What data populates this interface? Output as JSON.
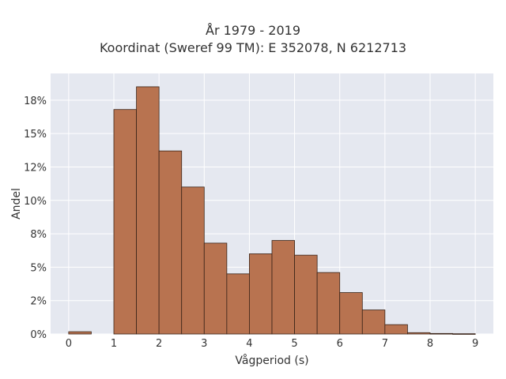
{
  "chart_data": {
    "type": "bar",
    "title_line1": "År 1979 - 2019",
    "title_line2": "Koordinat (Sweref 99 TM): E 352078, N 6212713",
    "xlabel": "Vågperiod (s)",
    "ylabel": "Andel",
    "bin_width": 0.5,
    "bins_start": [
      0,
      0.5,
      1,
      1.5,
      2,
      2.5,
      3,
      3.5,
      4,
      4.5,
      5,
      5.5,
      6,
      6.5,
      7,
      7.5,
      8,
      8.5
    ],
    "values": [
      0.17,
      0,
      16.8,
      18.5,
      13.7,
      11.0,
      6.8,
      4.5,
      6.0,
      7.0,
      5.9,
      4.6,
      3.1,
      1.8,
      0.7,
      0.1,
      0.04,
      0.02
    ],
    "xlim": [
      -0.4,
      9.4
    ],
    "ylim": [
      0,
      19.5
    ],
    "x_ticks": [
      0,
      1,
      2,
      3,
      4,
      5,
      6,
      7,
      8,
      9
    ],
    "y_ticks": [
      0,
      2.5,
      5,
      7.5,
      10,
      12.5,
      15,
      17.5
    ],
    "y_tick_labels": [
      "0%",
      "2%",
      "5%",
      "8%",
      "10%",
      "12%",
      "15%",
      "18%"
    ],
    "bar_color": "#b87350",
    "bar_edge_color": "#3a2418",
    "plot_background": "#e5e8f0",
    "grid": true
  }
}
